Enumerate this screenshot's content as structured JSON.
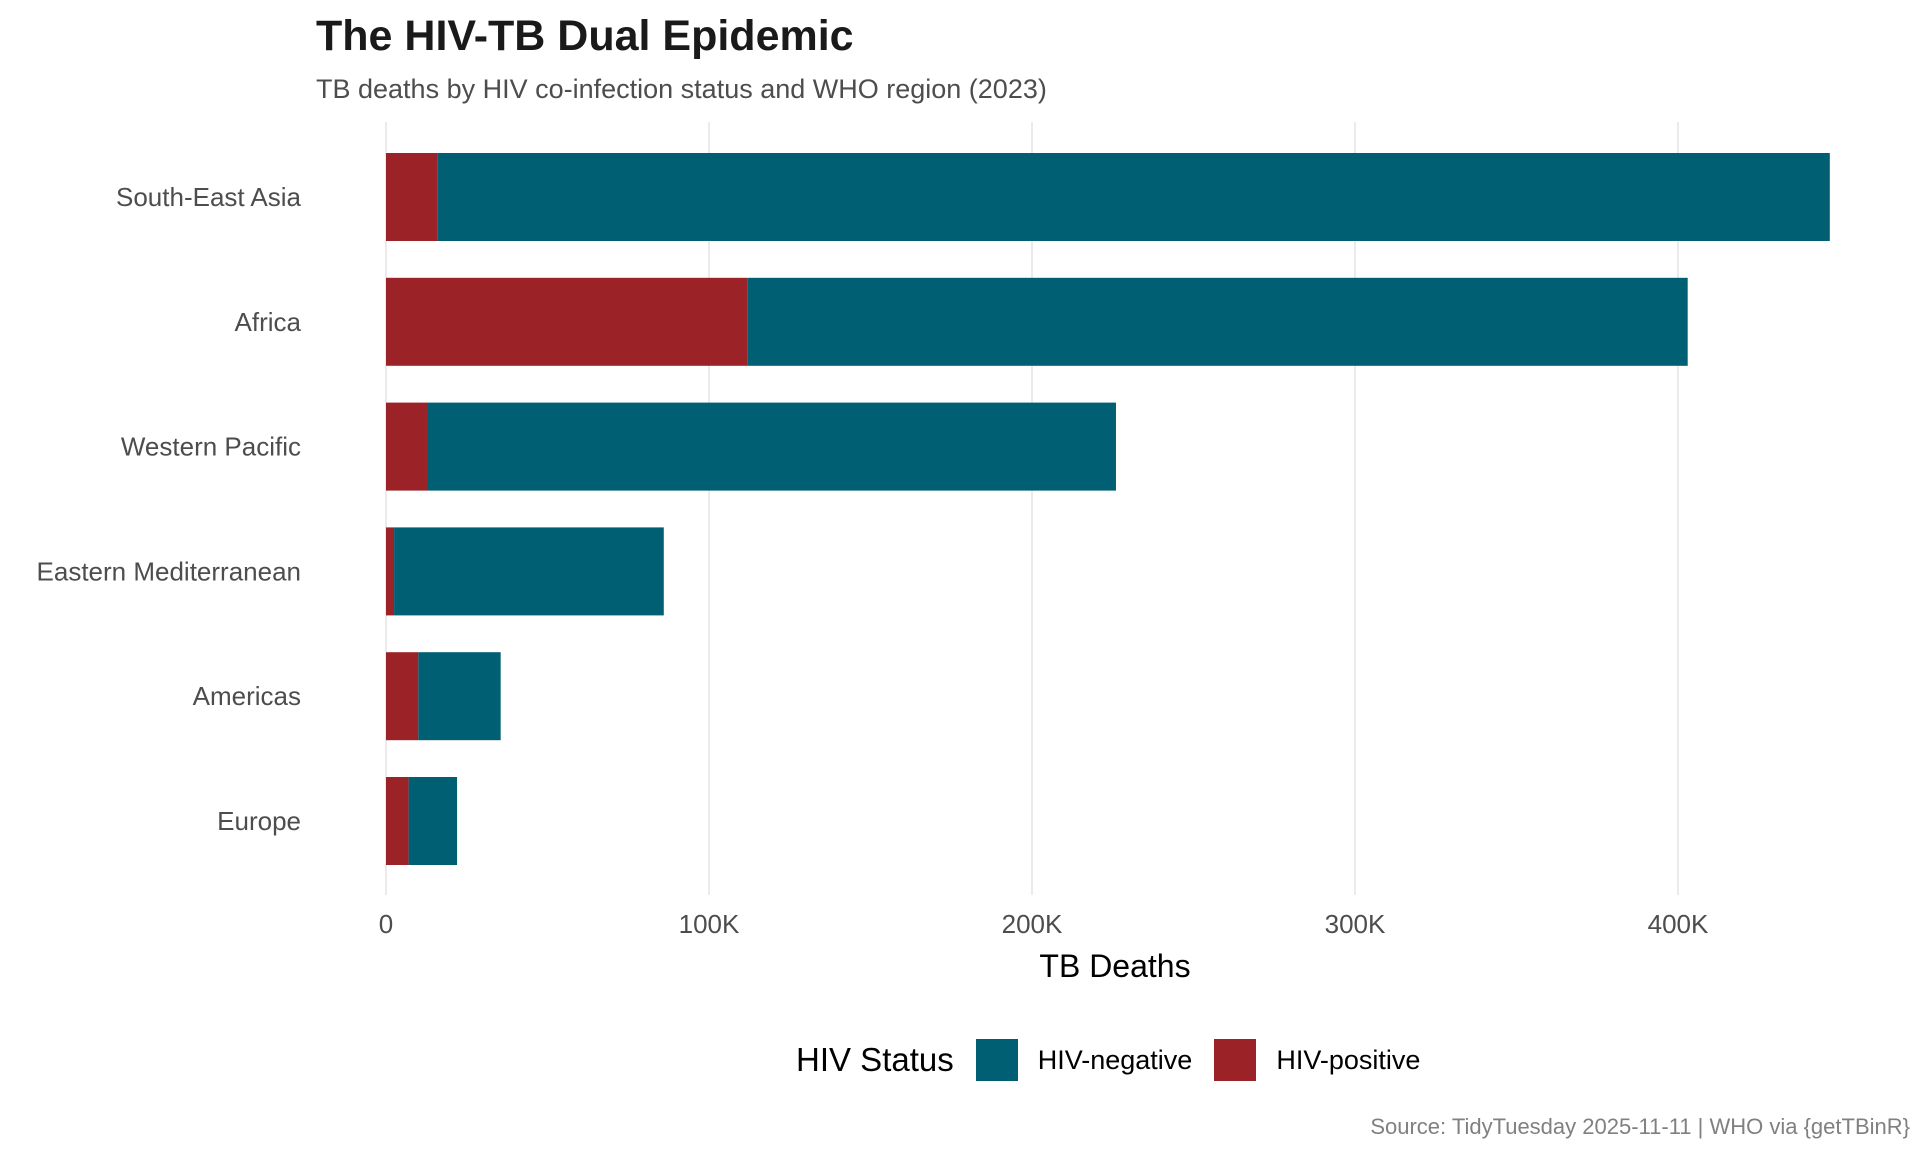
{
  "header": {
    "title": "The HIV-TB Dual Epidemic",
    "subtitle": "TB deaths by HIV co-infection status and WHO region (2023)"
  },
  "legend": {
    "title": "HIV Status",
    "items": [
      {
        "label": "HIV-negative",
        "color": "#005F73"
      },
      {
        "label": "HIV-positive",
        "color": "#9B2226"
      }
    ]
  },
  "caption": "Source: TidyTuesday 2025-11-11 | WHO via {getTBinR}",
  "chart_data": {
    "type": "bar",
    "orientation": "horizontal",
    "stacked": true,
    "title": "The HIV-TB Dual Epidemic",
    "subtitle": "TB deaths by HIV co-infection status and WHO region (2023)",
    "xlabel": "TB Deaths",
    "ylabel": "",
    "categories": [
      "South-East Asia",
      "Africa",
      "Western Pacific",
      "Eastern Mediterranean",
      "Americas",
      "Europe"
    ],
    "series": [
      {
        "name": "HIV-positive",
        "color": "#9B2226",
        "values": [
          16000,
          112000,
          13000,
          2500,
          10000,
          7000
        ]
      },
      {
        "name": "HIV-negative",
        "color": "#005F73",
        "values": [
          431000,
          291000,
          213000,
          83500,
          25500,
          15000
        ]
      }
    ],
    "xlim": [
      0,
      450000
    ],
    "xticks": [
      0,
      100000,
      200000,
      300000,
      400000
    ],
    "xtick_labels": [
      "0",
      "100K",
      "200K",
      "300K",
      "400K"
    ],
    "grid": "vertical major",
    "legend_position": "bottom",
    "caption": "Source: TidyTuesday 2025-11-11 | WHO via {getTBinR}"
  }
}
